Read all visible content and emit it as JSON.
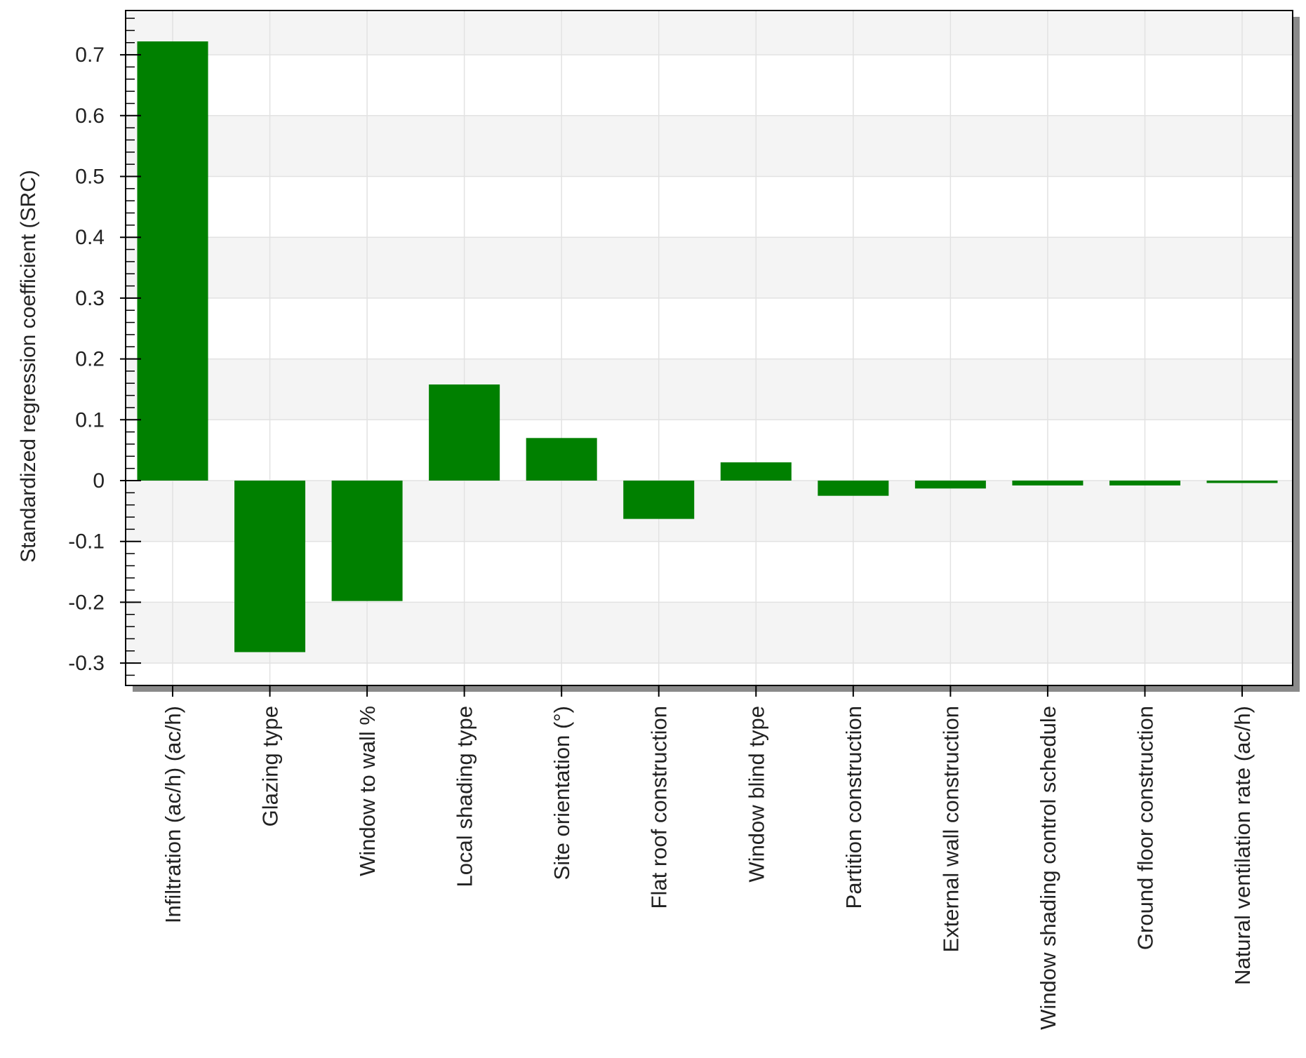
{
  "chart_data": {
    "type": "bar",
    "title": "",
    "xlabel": "",
    "ylabel": "Standardized regression coefficient (SRC)",
    "ylim": [
      -0.33,
      0.77
    ],
    "yticks": [
      -0.3,
      -0.2,
      -0.1,
      0,
      0.1,
      0.2,
      0.3,
      0.4,
      0.5,
      0.6,
      0.7
    ],
    "ytick_labels": [
      "-0.3",
      "-0.2",
      "-0.1",
      "0",
      "0.1",
      "0.2",
      "0.3",
      "0.4",
      "0.5",
      "0.6",
      "0.7"
    ],
    "grid": true,
    "categories": [
      "Infiltration (ac/h) (ac/h)",
      "Glazing type",
      "Window to wall %",
      "Local shading type",
      "Site orientation (°)",
      "Flat roof construction",
      "Window blind type",
      "Partition construction",
      "External wall construction",
      "Window shading control schedule",
      "Ground floor construction",
      "Natural ventilation rate (ac/h)"
    ],
    "values": [
      0.722,
      -0.282,
      -0.198,
      0.158,
      0.07,
      -0.063,
      0.03,
      -0.025,
      -0.013,
      -0.008,
      -0.008,
      -0.004
    ],
    "colors": {
      "bar": "#008000",
      "band_alt": "#f4f4f4",
      "band": "#ffffff",
      "grid": "#e2e2e2",
      "frame": "#000000",
      "shadow": "#8a8a8a"
    }
  }
}
